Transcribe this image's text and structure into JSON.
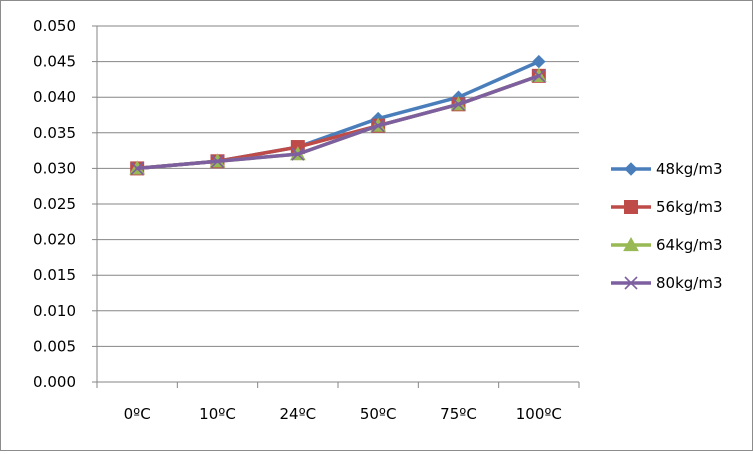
{
  "chart_data": {
    "type": "line",
    "categories": [
      "0ºC",
      "10ºC",
      "24ºC",
      "50ºC",
      "75ºC",
      "100ºC"
    ],
    "ylim": [
      0,
      0.05
    ],
    "y_tick_step": 0.005,
    "y_tick_decimals": 3,
    "grid": "horizontal",
    "legend_position": "right",
    "series": [
      {
        "name": "48kg/m3",
        "color": "#4a7ebb",
        "marker": "diamond",
        "values": [
          0.03,
          0.031,
          0.033,
          0.037,
          0.04,
          0.045
        ]
      },
      {
        "name": "56kg/m3",
        "color": "#be4b48",
        "marker": "square",
        "values": [
          0.03,
          0.031,
          0.033,
          0.036,
          0.039,
          0.043
        ]
      },
      {
        "name": "64kg/m3",
        "color": "#98b954",
        "marker": "triangle",
        "values": [
          0.03,
          0.031,
          0.032,
          0.036,
          0.039,
          0.043
        ]
      },
      {
        "name": "80kg/m3",
        "color": "#7d5fa0",
        "marker": "x",
        "values": [
          0.03,
          0.031,
          0.032,
          0.036,
          0.039,
          0.043
        ]
      }
    ]
  }
}
